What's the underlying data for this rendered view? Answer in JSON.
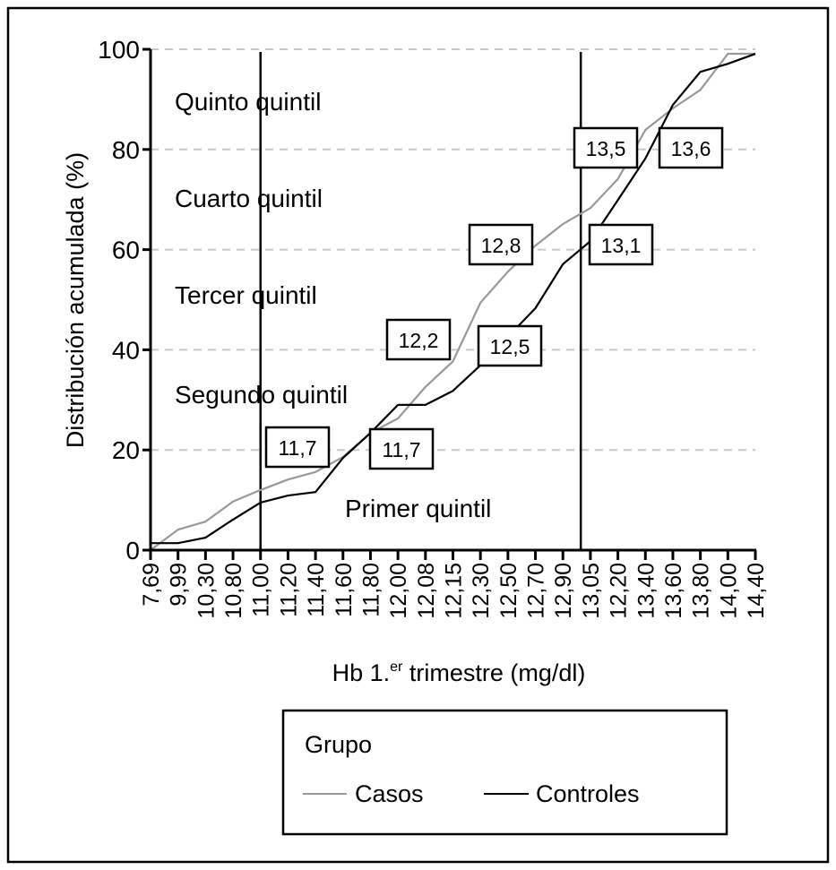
{
  "chart_data": {
    "type": "line",
    "title": "",
    "xlabel": "Hb 1.",
    "xlabel_sup": "er",
    "xlabel_rest": " trimestre (mg/dl)",
    "ylabel": "Distribución acumulada (%)",
    "ylim": [
      0,
      100
    ],
    "yticks": [
      "0",
      "20",
      "40",
      "60",
      "80",
      "100"
    ],
    "grid": "horizontal dashed",
    "categories": [
      "7,69",
      "9,99",
      "10,30",
      "10,80",
      "11,00",
      "11,20",
      "11,40",
      "11,60",
      "11,80",
      "12,00",
      "12,08",
      "12,15",
      "12,30",
      "12,50",
      "12,70",
      "12,90",
      "13,05",
      "12,20",
      "13,40",
      "13,60",
      "13,80",
      "14,00",
      "14,40"
    ],
    "series": [
      {
        "name": "Casos",
        "color": "#999999",
        "values": [
          0,
          4.1,
          5.7,
          9.7,
          12.0,
          14.1,
          15.6,
          18.6,
          23.4,
          26.3,
          32.6,
          37.7,
          49.4,
          55.6,
          60.8,
          65.1,
          68.3,
          74.1,
          83.9,
          88.2,
          91.9,
          99.1,
          99.1
        ]
      },
      {
        "name": "Controles",
        "color": "#000000",
        "values": [
          1.4,
          1.4,
          2.5,
          6.1,
          9.5,
          10.9,
          11.6,
          18.4,
          23.4,
          29.0,
          29.0,
          31.8,
          36.9,
          42.6,
          48.3,
          57.1,
          61.7,
          69.9,
          78.2,
          88.9,
          95.5,
          97.1,
          99.1
        ]
      }
    ],
    "region_labels": [
      "Quinto quintil",
      "Cuarto quintil",
      "Tercer quintil",
      "Segundo quintil",
      "Primer quintil"
    ],
    "annotations": [
      "11,7",
      "11,7",
      "12,2",
      "12,8",
      "12,5",
      "13,5",
      "13,6",
      "13,1"
    ],
    "legend": {
      "title": "Grupo",
      "placement": "bottom",
      "entries": [
        "Casos",
        "Controles"
      ]
    }
  }
}
